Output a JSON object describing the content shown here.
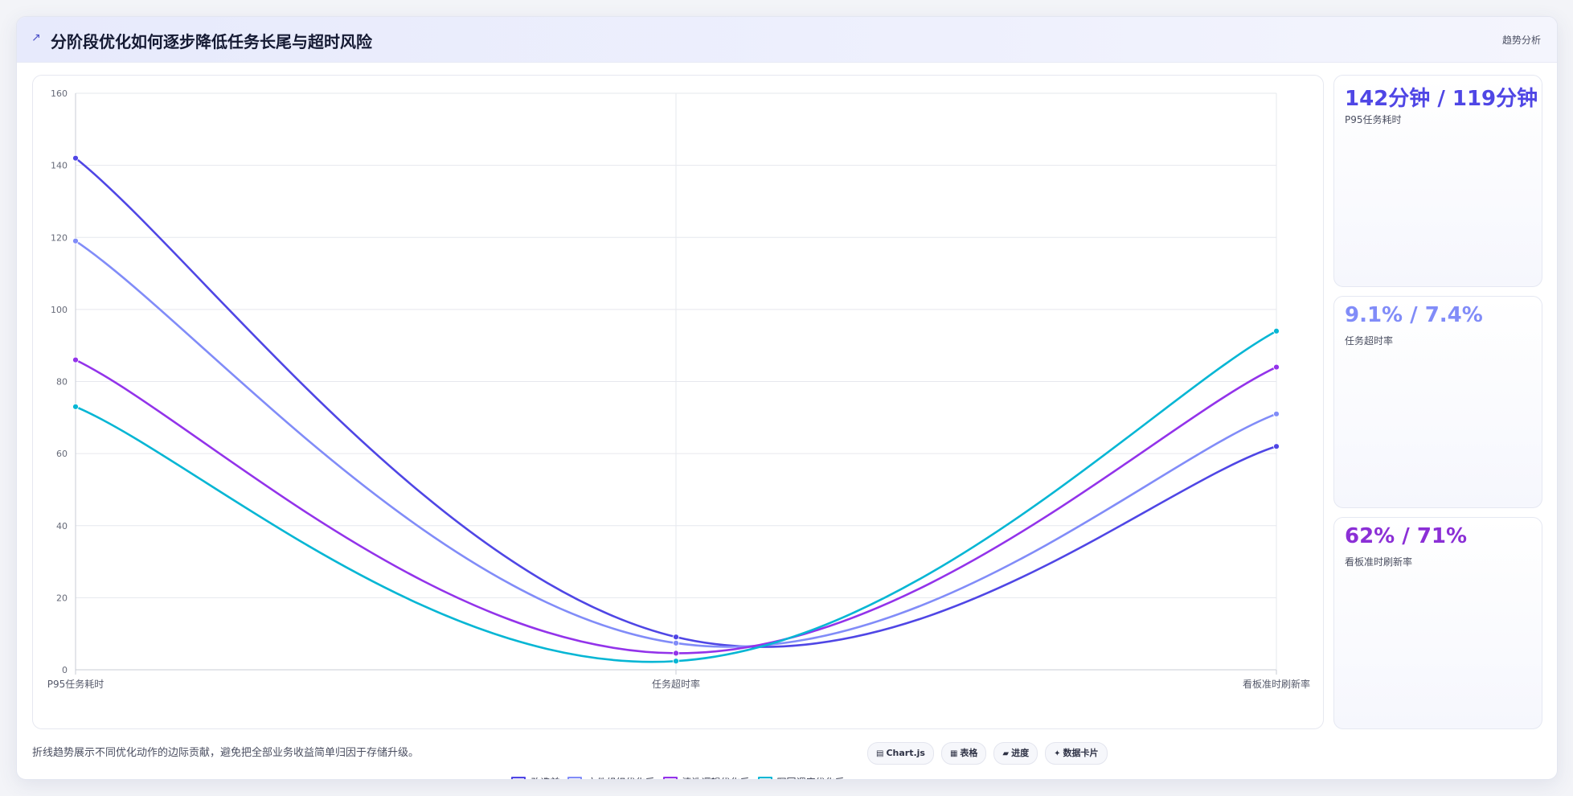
{
  "header": {
    "icon": "trend-icon",
    "title": "分阶段优化如何逐步降低任务长尾与超时风险",
    "badge": "趋势分析"
  },
  "cards": [
    {
      "value": "142分钟 / 119分钟",
      "label": "P95任务耗时",
      "color": "#4f46e5"
    },
    {
      "value": "9.1% / 7.4%",
      "label": "任务超时率",
      "color": "#818cf8"
    },
    {
      "value": "62% / 71%",
      "label": "看板准时刷新率",
      "color": "#8b2fd6"
    }
  ],
  "footer": {
    "note": "折线趋势展示不同优化动作的边际贡献，避免把全部业务收益简单归因于存储升级。",
    "pills": [
      {
        "icon": "chart-icon",
        "glyph": "▤",
        "label": "Chart.js"
      },
      {
        "icon": "table-icon",
        "glyph": "▦",
        "label": "表格"
      },
      {
        "icon": "progress-icon",
        "glyph": "▰",
        "label": "进度"
      },
      {
        "icon": "card-icon",
        "glyph": "✦",
        "label": "数据卡片"
      }
    ]
  },
  "chart_data": {
    "type": "line",
    "categories": [
      "P95任务耗时",
      "任务超时率",
      "看板准时刷新率"
    ],
    "ylim": [
      0,
      160
    ],
    "yticks": [
      0,
      20,
      40,
      60,
      80,
      100,
      120,
      140,
      160
    ],
    "grid": true,
    "legend_position": "bottom",
    "series": [
      {
        "name": "改造前",
        "values": [
          142,
          9.1,
          62
        ],
        "color": "#4f46e5"
      },
      {
        "name": "文件组织优化后",
        "values": [
          119,
          7.4,
          71
        ],
        "color": "#818cf8"
      },
      {
        "name": "清洗逻辑优化后",
        "values": [
          86,
          4.6,
          84
        ],
        "color": "#9333ea"
      },
      {
        "name": "写回调度优化后",
        "values": [
          73,
          2.4,
          94
        ],
        "color": "#06b6d4"
      }
    ]
  }
}
